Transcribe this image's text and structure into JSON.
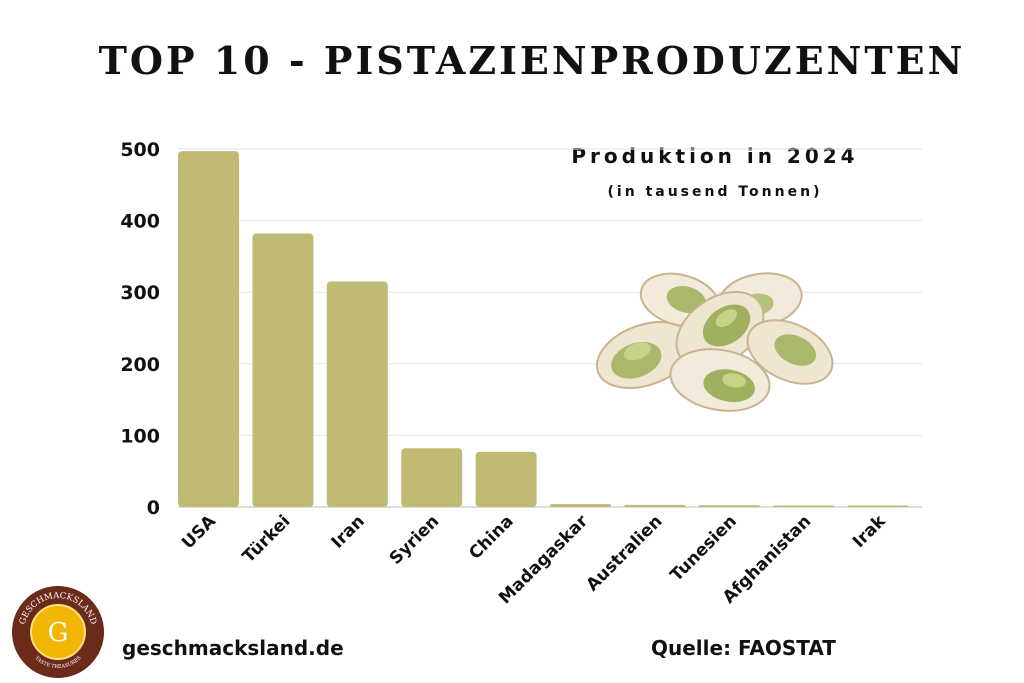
{
  "title": "TOP 10 - PISTAZIENPRODUZENTEN",
  "footer": {
    "site": "geschmacksland.de",
    "source": "Quelle: FAOSTAT"
  },
  "logo": {
    "letter": "G",
    "top_text": "GESCHMACKSLAND",
    "bottom_text": "TASTE TREASURES"
  },
  "colors": {
    "bar": "#c0ba73",
    "grid": "#e6e6e6",
    "logo_ring": "#6b2a1a",
    "logo_center": "#f2b705"
  },
  "chart_data": {
    "type": "bar",
    "title": "Produktion in 2024",
    "ylabel": "(in tausend Tonnen)",
    "categories": [
      "USA",
      "Türkei",
      "Iran",
      "Syrien",
      "China",
      "Madagaskar",
      "Australien",
      "Tunesien",
      "Afghanistan",
      "Irak"
    ],
    "values": [
      497,
      382,
      315,
      82,
      77,
      4,
      3,
      2.5,
      1.5,
      0.5
    ],
    "yticks": [
      0,
      100,
      200,
      300,
      400,
      500
    ],
    "ylim": [
      0,
      500
    ],
    "grid": true
  }
}
